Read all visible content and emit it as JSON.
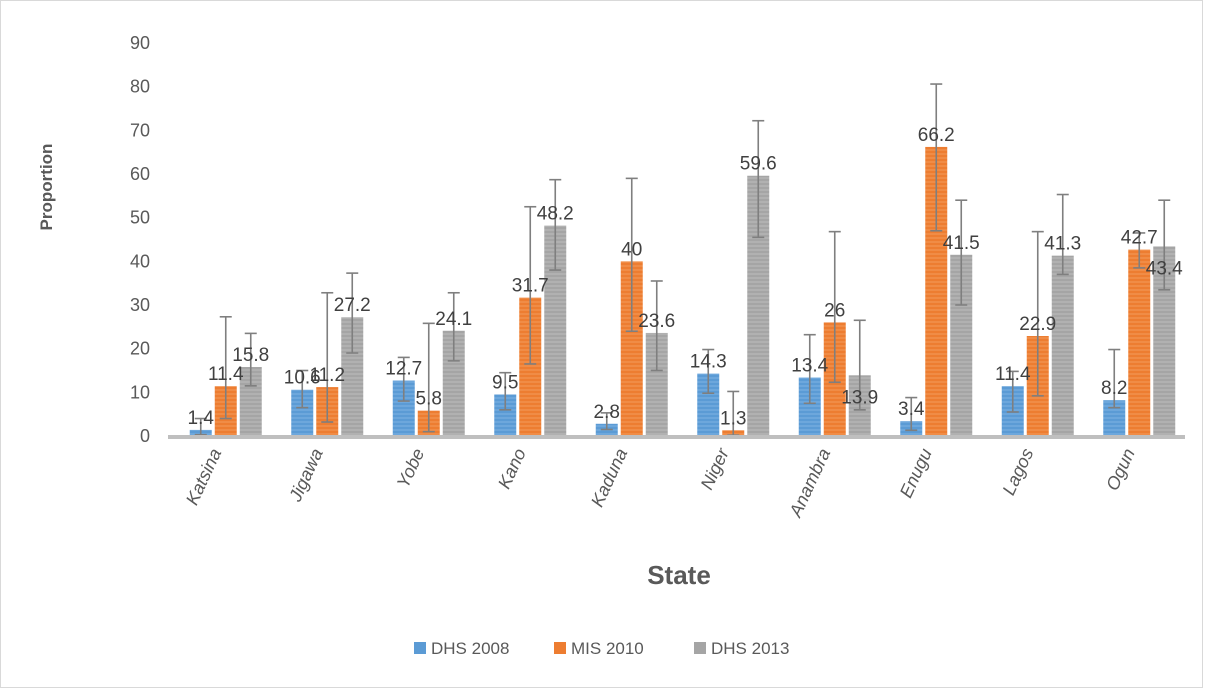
{
  "chart_data": {
    "type": "bar",
    "title": "",
    "xlabel": "State",
    "ylabel": "Proportion",
    "ylim": [
      0,
      90
    ],
    "yticks": [
      0,
      10,
      20,
      30,
      40,
      50,
      60,
      70,
      80,
      90
    ],
    "grid": false,
    "legend_position": "bottom",
    "categories": [
      "Katsina",
      "Jigawa",
      "Yobe",
      "Kano",
      "Kaduna",
      "Niger",
      "Anambra",
      "Enugu",
      "Lagos",
      "Ogun"
    ],
    "series": [
      {
        "name": "DHS 2008",
        "color": "#5B9BD5",
        "values": [
          1.4,
          10.6,
          12.7,
          9.5,
          2.8,
          14.3,
          13.4,
          3.4,
          11.4,
          8.2
        ],
        "error_low": [
          0.3,
          6.5,
          8,
          6,
          1.5,
          9.8,
          7.5,
          1.3,
          5.5,
          6.5
        ],
        "error_high": [
          4,
          15,
          18,
          14.5,
          5.3,
          19.8,
          23.2,
          8.8,
          14.8,
          19.8
        ]
      },
      {
        "name": "MIS 2010",
        "color": "#ED7D31",
        "values": [
          11.4,
          11.2,
          5.8,
          31.7,
          40,
          1.3,
          26,
          66.2,
          22.9,
          42.7
        ],
        "error_low": [
          4,
          3.2,
          1,
          16.5,
          24,
          0.2,
          12.3,
          47,
          9.2,
          38.5
        ],
        "error_high": [
          27.3,
          32.8,
          25.8,
          52.5,
          59,
          10.2,
          46.8,
          80.6,
          46.8,
          46.5
        ]
      },
      {
        "name": "DHS 2013",
        "color": "#A5A5A5",
        "values": [
          15.8,
          27.2,
          24.1,
          48.2,
          23.6,
          59.6,
          13.9,
          41.5,
          41.3,
          43.4
        ],
        "error_low": [
          11.5,
          19,
          17.2,
          38,
          15,
          45.5,
          6,
          30,
          37,
          33.5
        ],
        "error_high": [
          23.5,
          37.3,
          32.8,
          58.7,
          35.5,
          72.2,
          26.5,
          54,
          55.3,
          54
        ]
      }
    ]
  }
}
